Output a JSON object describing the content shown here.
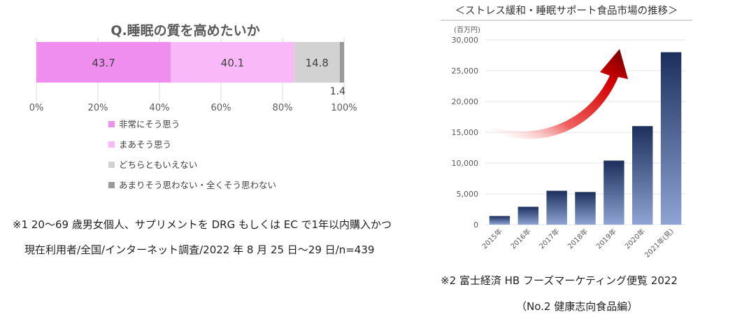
{
  "chart_data": [
    {
      "type": "bar",
      "orientation": "horizontal-stacked-100",
      "title": "Q.睡眠の質を高めたいか",
      "segments": [
        {
          "name": "非常にそう思う",
          "value": 43.7,
          "label": "43.7",
          "color": "#f08ef0"
        },
        {
          "name": "まあそう思う",
          "value": 40.1,
          "label": "40.1",
          "color": "#f9b9f9"
        },
        {
          "name": "どちらともいえない",
          "value": 14.8,
          "label": "14.8",
          "color": "#d2d2d2"
        },
        {
          "name": "あまりそう思わない・全くそう思わない",
          "value": 1.4,
          "label": "1.4",
          "color": "#9a9a9a"
        }
      ],
      "xticks": [
        "0%",
        "20%",
        "40%",
        "60%",
        "80%",
        "100%"
      ],
      "xlim": [
        0,
        100
      ],
      "grid": true,
      "legend_position": "bottom"
    },
    {
      "type": "bar",
      "title": "＜ストレス緩和・睡眠サポート食品市場の推移＞",
      "unit": "(百万円)",
      "categories": [
        "2015年",
        "2016年",
        "2017年",
        "2018年",
        "2019年",
        "2020年",
        "2021年(見)"
      ],
      "values": [
        1400,
        2900,
        5500,
        5300,
        10400,
        16000,
        28000
      ],
      "yticks": [
        "0",
        "5,000",
        "10,000",
        "15,000",
        "20,000",
        "25,000",
        "30,000"
      ],
      "ylim": [
        0,
        30000
      ],
      "grid": true
    }
  ],
  "notes": {
    "note1_line1": "※1  20～69 歳男女個人、サプリメントを DRG もしくは EC で1年以内購入かつ",
    "note1_line2": "現在利用者/全国/インターネット調査/2022 年 8 月 25 日～29 日/n=439",
    "note2_line1": "※2  富士経済  HB フーズマーケティング便覧 2022",
    "note2_line2": "（No.2 健康志向食品編）"
  }
}
